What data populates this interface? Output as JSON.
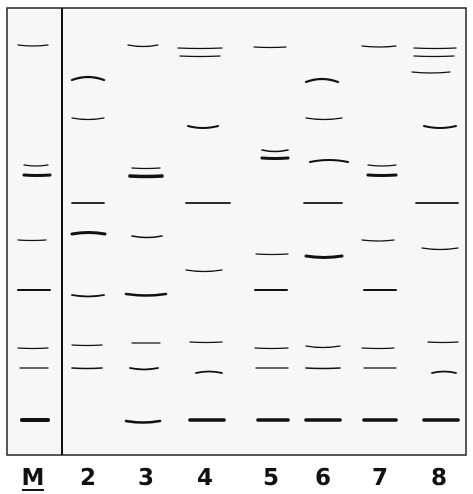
{
  "lane_labels": [
    "M",
    "2",
    "3",
    "4",
    "5",
    "6",
    "7",
    "8"
  ]
}
